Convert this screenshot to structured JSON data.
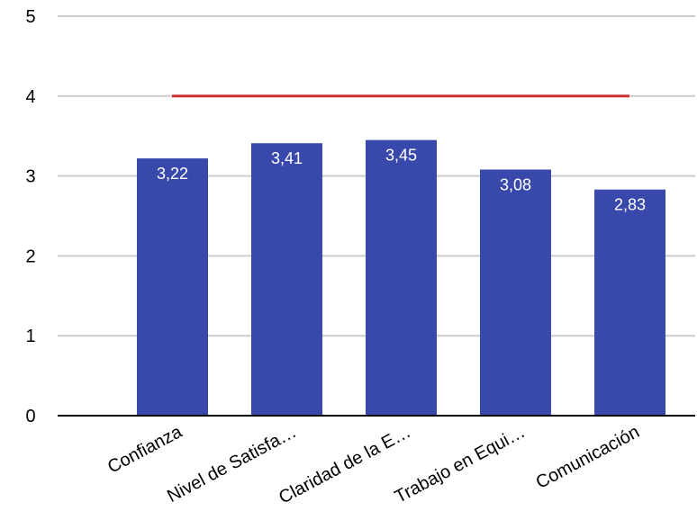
{
  "chart_data": {
    "type": "bar",
    "categories": [
      "Confianza",
      "Nivel de Satisfa…",
      "Claridad de la E…",
      "Trabajo en Equi…",
      "Comunicación"
    ],
    "values": [
      3.22,
      3.41,
      3.45,
      3.08,
      2.83
    ],
    "data_labels": [
      "3,22",
      "3,41",
      "3,45",
      "3,08",
      "2,83"
    ],
    "y_ticks": [
      0,
      1,
      2,
      3,
      4,
      5
    ],
    "y_tick_labels": [
      "0",
      "1",
      "2",
      "3",
      "4",
      "5"
    ],
    "ylim": [
      0,
      5
    ],
    "reference_line": {
      "value": 4
    },
    "grid": true,
    "legend": "none",
    "colors": {
      "bar": "#3949ab",
      "reference_line": "#d32f2f",
      "grid": "#cccccc",
      "axis": "#000000"
    }
  }
}
